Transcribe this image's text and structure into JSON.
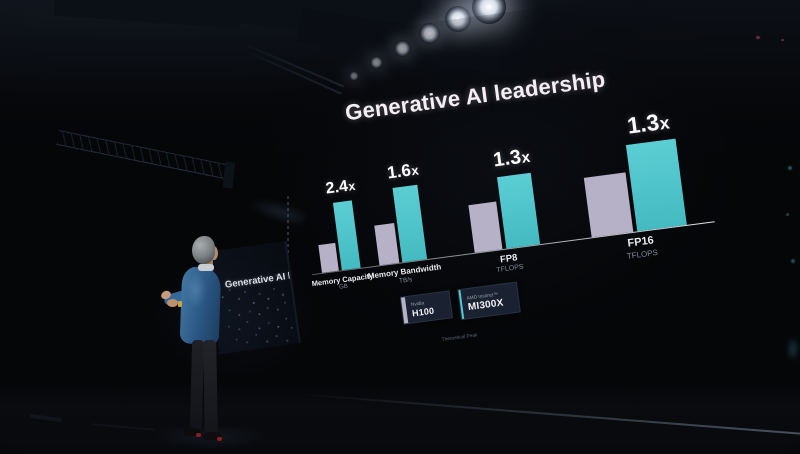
{
  "slide": {
    "title": "Generative AI leadership",
    "footnote": "Theoretical Peak",
    "groups": [
      {
        "multiplier": "2.4",
        "suffix": "x",
        "label": "Memory Capacity",
        "sublabel": "GB"
      },
      {
        "multiplier": "1.6",
        "suffix": "x",
        "label": "Memory Bandwidth",
        "sublabel": "TB/s"
      },
      {
        "multiplier": "1.3",
        "suffix": "x",
        "label": "FP8",
        "sublabel": "TFLOPS"
      },
      {
        "multiplier": "1.3",
        "suffix": "x",
        "label": "FP16",
        "sublabel": "TFLOPS"
      }
    ],
    "legend": [
      {
        "brand": "Nvidia",
        "model": "H100",
        "swatch_color": "#b6b1c6"
      },
      {
        "brand": "AMD Instinct™",
        "model": "MI300X",
        "swatch_color": "#4ecbd0"
      }
    ]
  },
  "side_screen": {
    "title": "Generative AI leadership"
  },
  "colors": {
    "h100_bar": "#b6b1c6",
    "mi300x_bar": "#4fc6cb",
    "title_text": "#f4eff4",
    "legend_box_bg": "#1a2130",
    "background": "#050608"
  },
  "chart_data": {
    "type": "bar",
    "title": "Generative AI leadership",
    "categories": [
      "Memory Capacity (GB)",
      "Memory Bandwidth (TB/s)",
      "FP8 (TFLOPS)",
      "FP16 (TFLOPS)"
    ],
    "unit_labels": [
      "GB",
      "TB/s",
      "TFLOPS",
      "TFLOPS"
    ],
    "series": [
      {
        "name": "Nvidia H100",
        "values": [
          1.0,
          1.0,
          1.0,
          1.0
        ],
        "color": "#b6b1c6"
      },
      {
        "name": "AMD Instinct MI300X",
        "values": [
          2.4,
          1.6,
          1.3,
          1.3
        ],
        "color": "#4fc6cb"
      }
    ],
    "value_labels": [
      "2.4x",
      "1.6x",
      "1.3x",
      "1.3x"
    ],
    "legend_position": "bottom-center",
    "grid": false,
    "ylim": [
      0,
      2.6
    ]
  }
}
